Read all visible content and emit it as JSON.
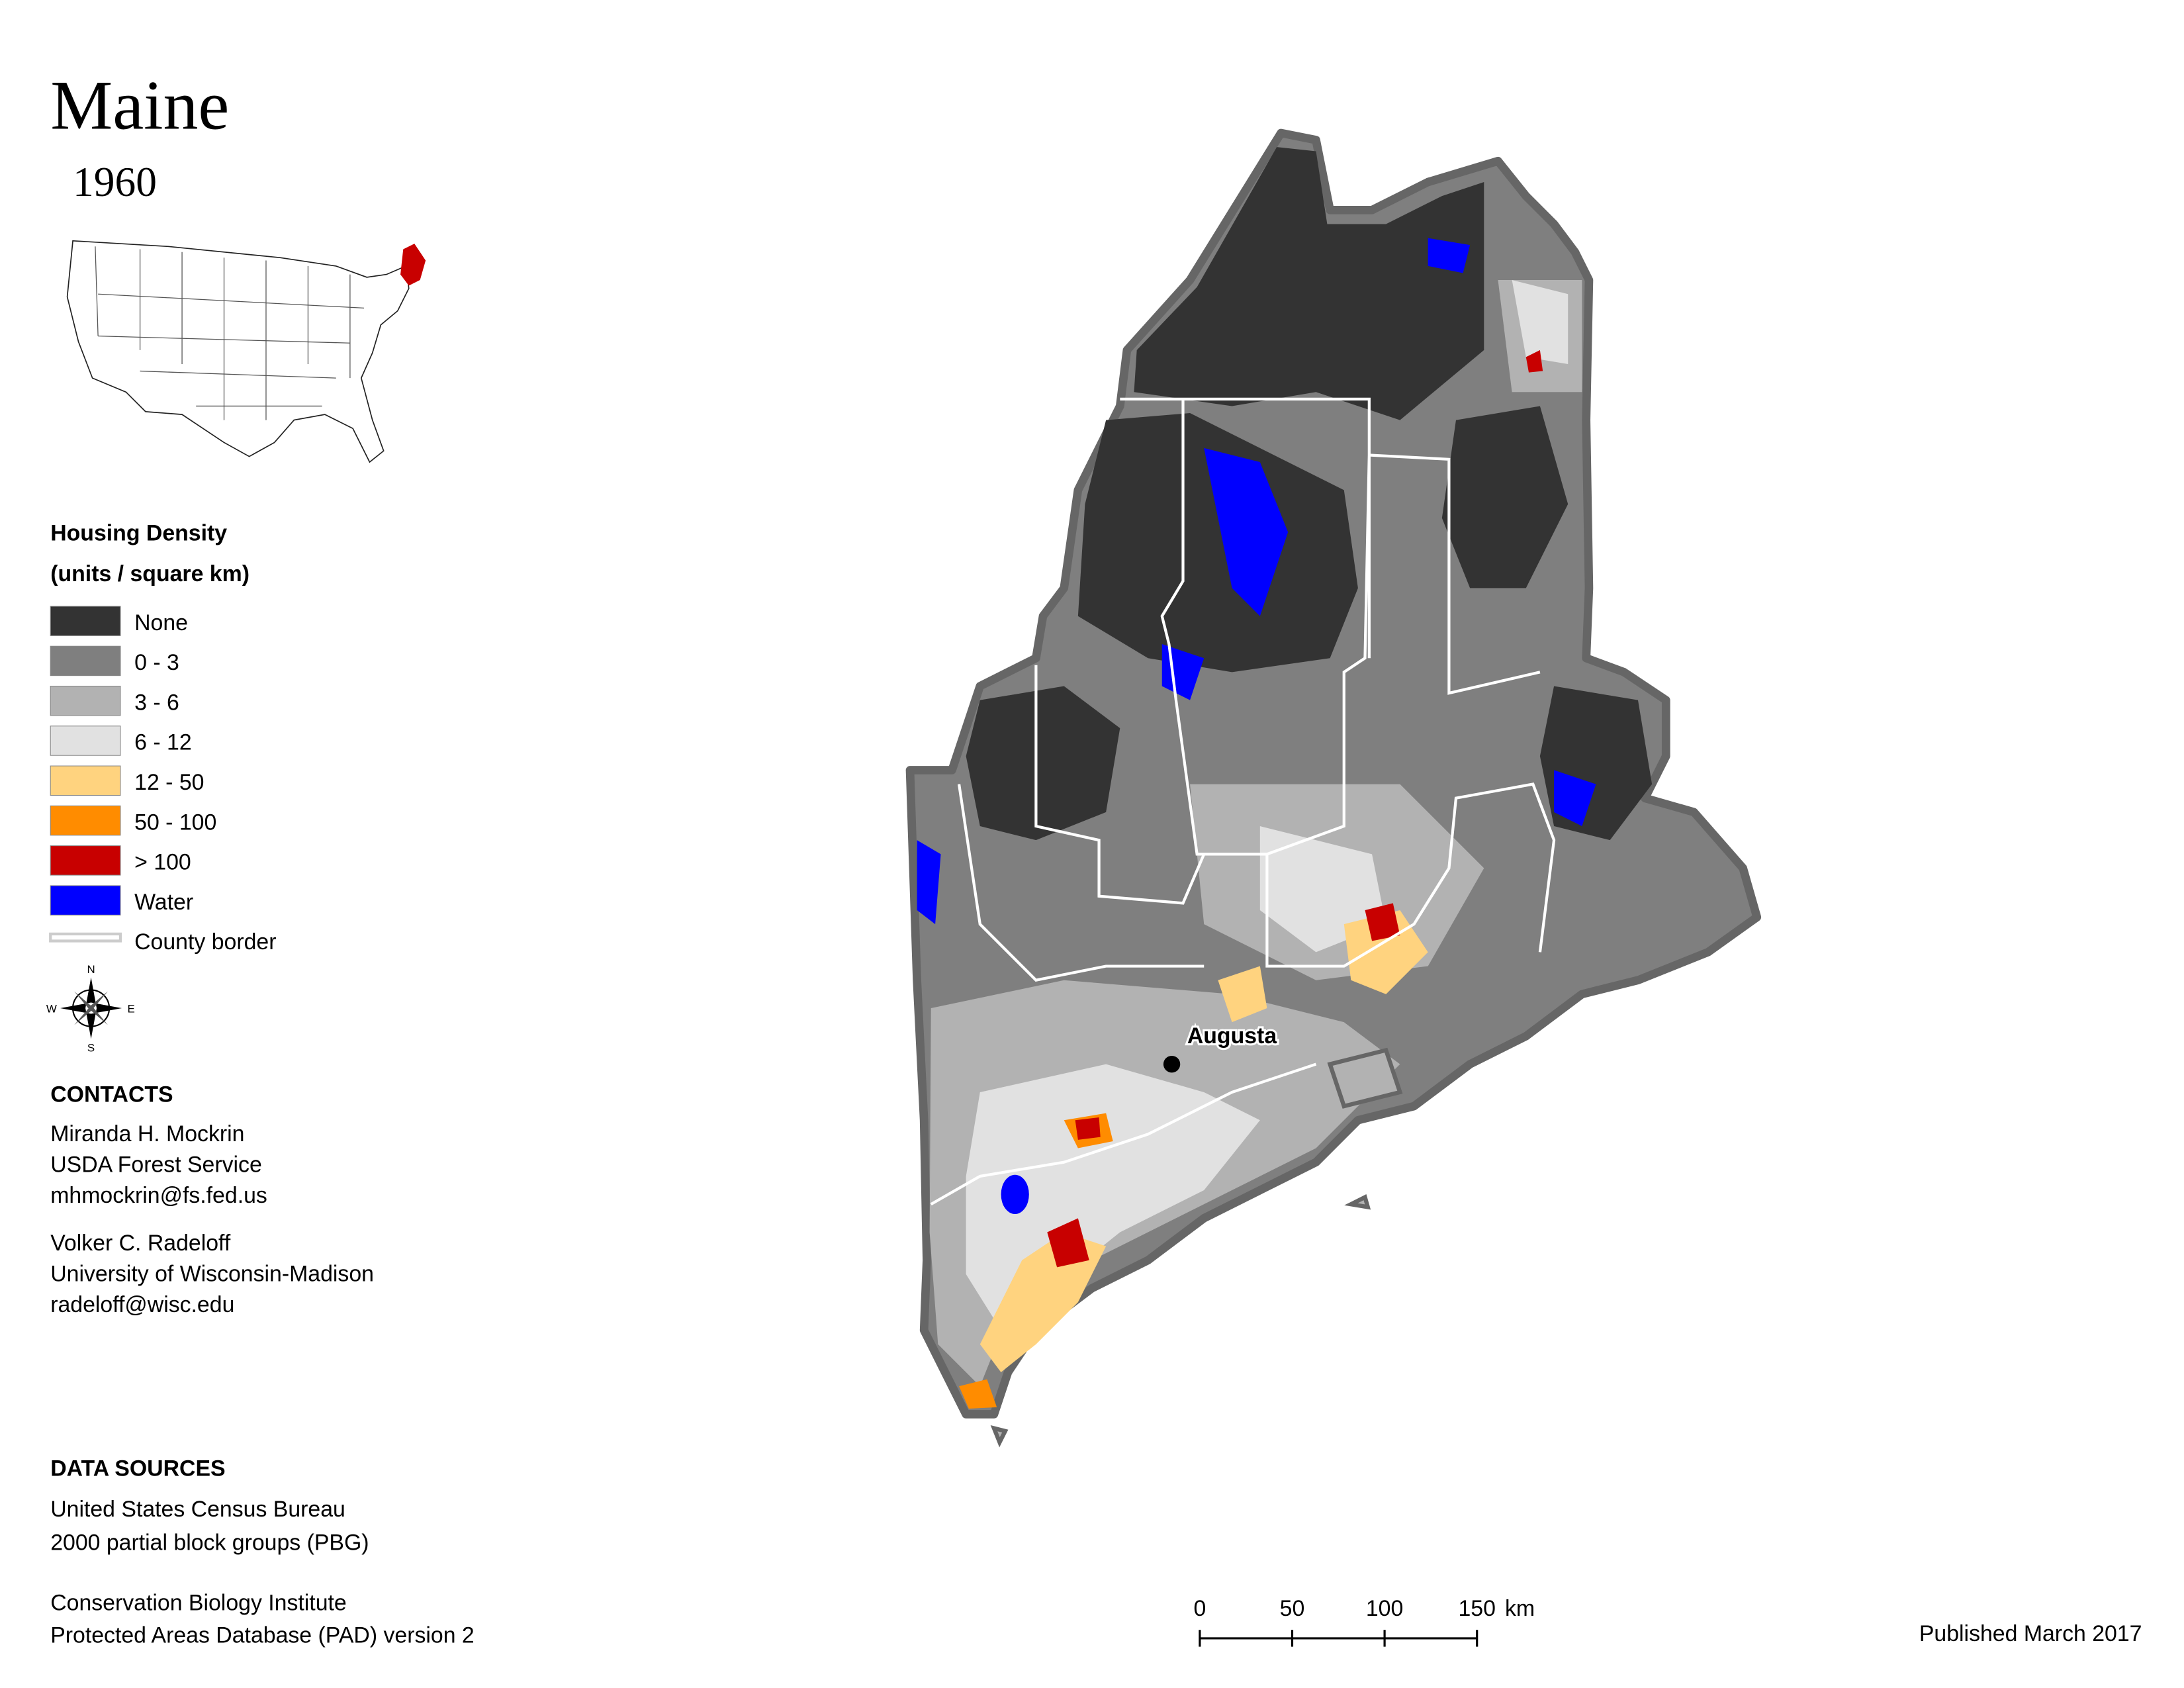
{
  "header": {
    "title": "Maine",
    "subtitle": "1960"
  },
  "legend": {
    "title": "Housing Density",
    "subtitle": "(units / square km)",
    "items": [
      {
        "label": "None",
        "color": "#333333"
      },
      {
        "label": "0 - 3",
        "color": "#7f7f7f"
      },
      {
        "label": "3 - 6",
        "color": "#b2b2b2"
      },
      {
        "label": "6 - 12",
        "color": "#e1e1e1"
      },
      {
        "label": "12 - 50",
        "color": "#ffd37f"
      },
      {
        "label": "50 - 100",
        "color": "#ff8c00"
      },
      {
        "label": "> 100",
        "color": "#c80000"
      },
      {
        "label": "Water",
        "color": "#0000ff"
      },
      {
        "label": "County border",
        "color": "#cccccc"
      }
    ]
  },
  "map": {
    "city": "Augusta",
    "compass": [
      "N",
      "E",
      "S",
      "W"
    ]
  },
  "scale_bar": {
    "ticks": [
      0,
      50,
      100,
      150
    ],
    "unit": "km"
  },
  "contacts": {
    "title": "CONTACTS",
    "people": [
      [
        "Miranda H. Mockrin",
        "USDA Forest Service",
        "mhmockrin@fs.fed.us"
      ],
      [
        "Volker C. Radeloff",
        "University of Wisconsin-Madison",
        "radeloff@wisc.edu"
      ]
    ]
  },
  "data_sources": {
    "title": "DATA SOURCES",
    "groups": [
      [
        "United States Census Bureau",
        "2000 partial block groups (PBG)"
      ],
      [
        "Conservation Biology Institute",
        "Protected Areas Database (PAD) version 2"
      ]
    ]
  },
  "footer": {
    "published": "Published March 2017"
  }
}
